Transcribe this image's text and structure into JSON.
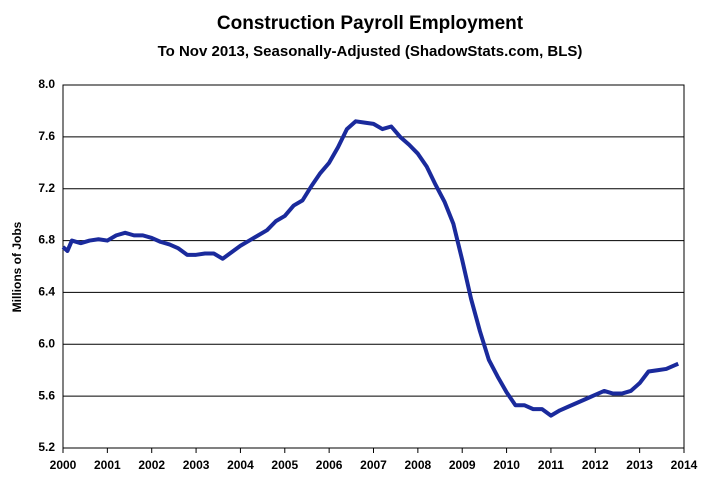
{
  "chart_data": {
    "type": "line",
    "title": "Construction Payroll Employment",
    "subtitle": "To Nov 2013, Seasonally-Adjusted (ShadowStats.com, BLS)",
    "y_label": "Millions of Jobs",
    "x": [
      2000.0,
      2000.1,
      2000.2,
      2000.4,
      2000.6,
      2000.8,
      2001.0,
      2001.2,
      2001.4,
      2001.6,
      2001.8,
      2002.0,
      2002.2,
      2002.4,
      2002.6,
      2002.8,
      2003.0,
      2003.2,
      2003.4,
      2003.6,
      2003.8,
      2004.0,
      2004.2,
      2004.4,
      2004.6,
      2004.8,
      2005.0,
      2005.2,
      2005.4,
      2005.6,
      2005.8,
      2006.0,
      2006.2,
      2006.4,
      2006.6,
      2006.8,
      2007.0,
      2007.2,
      2007.4,
      2007.6,
      2007.8,
      2008.0,
      2008.2,
      2008.4,
      2008.6,
      2008.8,
      2009.0,
      2009.2,
      2009.4,
      2009.6,
      2009.8,
      2010.0,
      2010.2,
      2010.4,
      2010.6,
      2010.8,
      2011.0,
      2011.2,
      2011.4,
      2011.6,
      2011.8,
      2012.0,
      2012.2,
      2012.4,
      2012.6,
      2012.8,
      2013.0,
      2013.2,
      2013.4,
      2013.6,
      2013.8,
      2013.87
    ],
    "series": [
      {
        "name": "Construction Payroll Employment",
        "color": "#1a2a9c",
        "values": [
          6.75,
          6.72,
          6.8,
          6.78,
          6.8,
          6.81,
          6.8,
          6.84,
          6.86,
          6.84,
          6.84,
          6.82,
          6.79,
          6.77,
          6.74,
          6.69,
          6.69,
          6.7,
          6.7,
          6.66,
          6.71,
          6.76,
          6.8,
          6.84,
          6.88,
          6.95,
          6.99,
          7.07,
          7.11,
          7.22,
          7.32,
          7.4,
          7.52,
          7.66,
          7.72,
          7.71,
          7.7,
          7.66,
          7.68,
          7.6,
          7.54,
          7.47,
          7.37,
          7.23,
          7.1,
          6.93,
          6.65,
          6.35,
          6.1,
          5.88,
          5.75,
          5.63,
          5.53,
          5.53,
          5.5,
          5.5,
          5.45,
          5.49,
          5.52,
          5.55,
          5.58,
          5.61,
          5.64,
          5.62,
          5.62,
          5.64,
          5.7,
          5.79,
          5.8,
          5.81,
          5.84,
          5.85
        ]
      }
    ],
    "xlim": [
      2000,
      2014
    ],
    "xticks": [
      2000,
      2001,
      2002,
      2003,
      2004,
      2005,
      2006,
      2007,
      2008,
      2009,
      2010,
      2011,
      2012,
      2013,
      2014
    ],
    "ylim": [
      5.2,
      8.0
    ],
    "yticks": [
      5.2,
      5.6,
      {
        "value": 6,
        "label": "6.0"
      },
      6.4,
      6.8,
      7.2,
      7.6,
      {
        "value": 8,
        "label": "8.0"
      }
    ],
    "grid": true
  }
}
